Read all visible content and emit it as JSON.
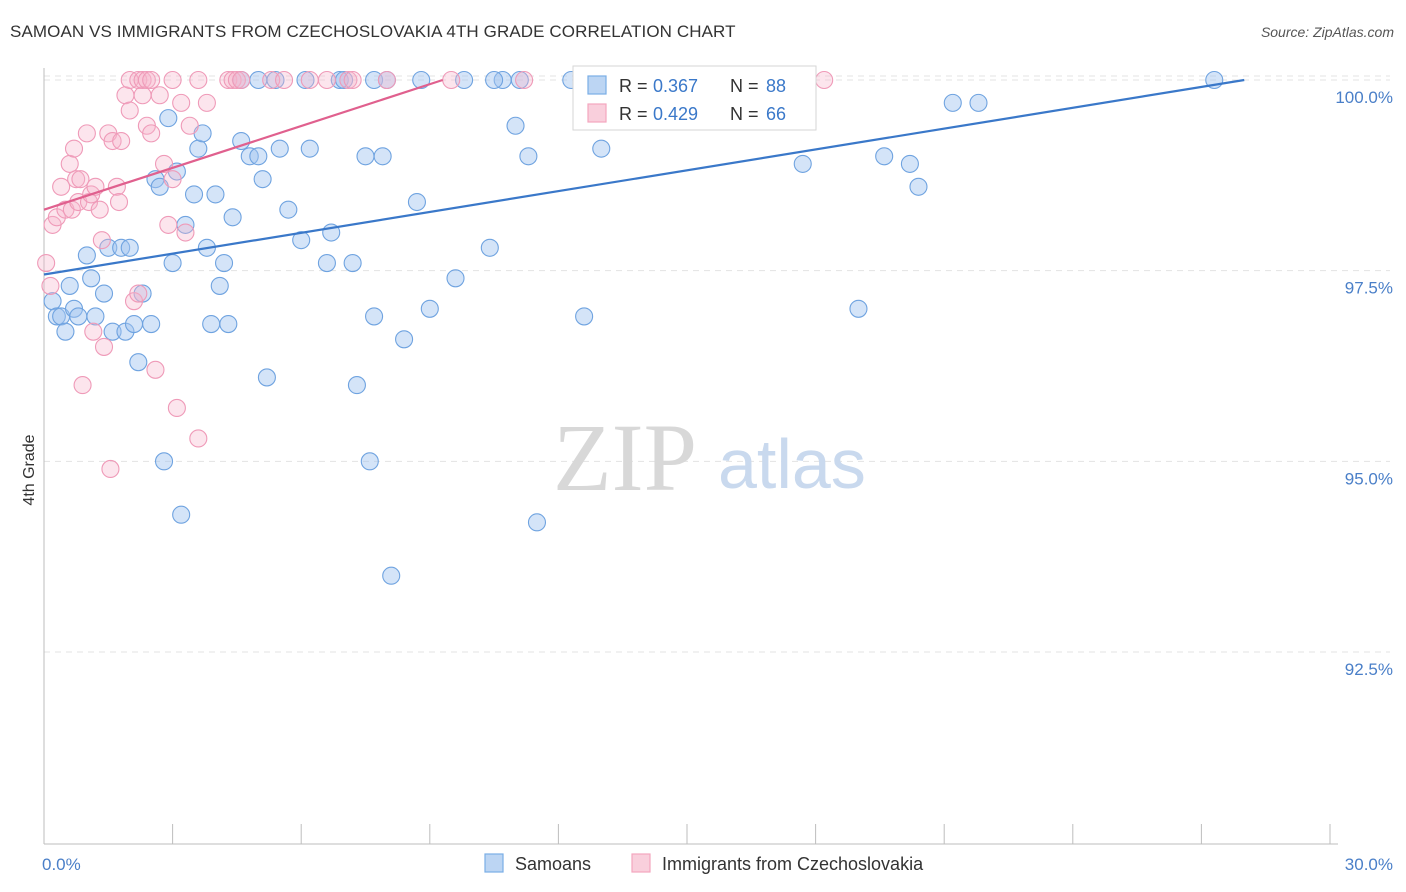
{
  "title": "SAMOAN VS IMMIGRANTS FROM CZECHOSLOVAKIA 4TH GRADE CORRELATION CHART",
  "source": "Source: ZipAtlas.com",
  "watermark": {
    "zip": "ZIP",
    "atlas": "atlas"
  },
  "colors": {
    "blue": "#7aaee6",
    "blue_line": "#3a78c9",
    "pink": "#f4a6bf",
    "pink_line": "#e0608e",
    "label": "#4a7fc8",
    "grid": "#e3e3e3"
  },
  "chart_data": {
    "type": "scatter",
    "title": "SAMOAN VS IMMIGRANTS FROM CZECHOSLOVAKIA 4TH GRADE CORRELATION CHART",
    "xlabel": "",
    "ylabel": "4th Grade",
    "xlim": [
      0,
      30
    ],
    "ylim": [
      90.0,
      100.2
    ],
    "x_tick_labels": [
      "0.0%",
      "30.0%"
    ],
    "y_ticks": [
      92.5,
      95.0,
      97.5,
      100.0
    ],
    "y_tick_labels": [
      "92.5%",
      "95.0%",
      "97.5%",
      "100.0%"
    ],
    "legend": [
      {
        "series": "Samoans",
        "R_label": "R =",
        "R": "0.367",
        "N_label": "N =",
        "N": "88"
      },
      {
        "series": "Immigrants from Czechoslovakia",
        "R_label": "R =",
        "R": "0.429",
        "N_label": "N =",
        "N": "66"
      }
    ],
    "series": [
      {
        "name": "Samoans",
        "color": "#7aaee6",
        "trend": {
          "x": [
            0.0,
            28.0
          ],
          "y": [
            97.45,
            100.0
          ]
        },
        "points": [
          [
            0.2,
            97.1
          ],
          [
            0.3,
            96.9
          ],
          [
            0.4,
            96.9
          ],
          [
            0.5,
            96.7
          ],
          [
            0.6,
            97.3
          ],
          [
            0.7,
            97.0
          ],
          [
            0.8,
            96.9
          ],
          [
            1.0,
            97.7
          ],
          [
            1.1,
            97.4
          ],
          [
            1.2,
            96.9
          ],
          [
            1.4,
            97.2
          ],
          [
            1.5,
            97.8
          ],
          [
            1.6,
            96.7
          ],
          [
            1.8,
            97.8
          ],
          [
            1.9,
            96.7
          ],
          [
            2.0,
            97.8
          ],
          [
            2.1,
            96.8
          ],
          [
            2.2,
            96.3
          ],
          [
            2.3,
            97.2
          ],
          [
            2.5,
            96.8
          ],
          [
            2.6,
            98.7
          ],
          [
            2.7,
            98.6
          ],
          [
            2.8,
            95.0
          ],
          [
            2.9,
            99.5
          ],
          [
            3.0,
            97.6
          ],
          [
            3.1,
            98.8
          ],
          [
            3.2,
            94.3
          ],
          [
            3.3,
            98.1
          ],
          [
            3.5,
            98.5
          ],
          [
            3.6,
            99.1
          ],
          [
            3.7,
            99.3
          ],
          [
            3.8,
            97.8
          ],
          [
            3.9,
            96.8
          ],
          [
            4.0,
            98.5
          ],
          [
            4.1,
            97.3
          ],
          [
            4.2,
            97.6
          ],
          [
            4.3,
            96.8
          ],
          [
            4.4,
            98.2
          ],
          [
            4.6,
            99.2
          ],
          [
            4.8,
            99.0
          ],
          [
            5.0,
            99.0
          ],
          [
            5.1,
            98.7
          ],
          [
            5.2,
            96.1
          ],
          [
            5.5,
            99.1
          ],
          [
            5.7,
            98.3
          ],
          [
            6.0,
            97.9
          ],
          [
            6.2,
            99.1
          ],
          [
            6.6,
            97.6
          ],
          [
            6.7,
            98.0
          ],
          [
            7.2,
            97.6
          ],
          [
            7.3,
            96.0
          ],
          [
            7.5,
            99.0
          ],
          [
            7.6,
            95.0
          ],
          [
            7.7,
            96.9
          ],
          [
            7.9,
            99.0
          ],
          [
            8.1,
            93.5
          ],
          [
            8.4,
            96.6
          ],
          [
            8.7,
            98.4
          ],
          [
            9.0,
            97.0
          ],
          [
            9.6,
            97.4
          ],
          [
            10.4,
            97.8
          ],
          [
            11.0,
            99.4
          ],
          [
            11.3,
            99.0
          ],
          [
            11.5,
            94.2
          ],
          [
            12.6,
            96.9
          ],
          [
            13.0,
            99.1
          ],
          [
            17.7,
            98.9
          ],
          [
            19.0,
            97.0
          ],
          [
            19.6,
            99.0
          ],
          [
            20.2,
            98.9
          ],
          [
            20.4,
            98.6
          ],
          [
            21.2,
            99.7
          ],
          [
            21.8,
            99.7
          ],
          [
            27.3,
            100.0
          ],
          [
            12.3,
            100.0
          ],
          [
            11.1,
            100.0
          ],
          [
            10.7,
            100.0
          ],
          [
            9.8,
            100.0
          ],
          [
            8.8,
            100.0
          ],
          [
            7.7,
            100.0
          ],
          [
            6.9,
            100.0
          ],
          [
            6.1,
            100.0
          ],
          [
            5.0,
            100.0
          ],
          [
            4.6,
            100.0
          ],
          [
            10.5,
            100.0
          ],
          [
            8.0,
            100.0
          ],
          [
            5.4,
            100.0
          ],
          [
            7.0,
            100.0
          ]
        ]
      },
      {
        "name": "Immigrants from Czechoslovakia",
        "color": "#f4a6bf",
        "trend": {
          "x": [
            0.0,
            9.3
          ],
          "y": [
            98.3,
            100.0
          ]
        },
        "points": [
          [
            0.05,
            97.6
          ],
          [
            0.15,
            97.3
          ],
          [
            0.2,
            98.1
          ],
          [
            0.3,
            98.2
          ],
          [
            0.4,
            98.6
          ],
          [
            0.5,
            98.3
          ],
          [
            0.6,
            98.9
          ],
          [
            0.65,
            98.3
          ],
          [
            0.7,
            99.1
          ],
          [
            0.75,
            98.7
          ],
          [
            0.8,
            98.4
          ],
          [
            0.85,
            98.7
          ],
          [
            0.9,
            96.0
          ],
          [
            1.0,
            99.3
          ],
          [
            1.05,
            98.4
          ],
          [
            1.1,
            98.5
          ],
          [
            1.15,
            96.7
          ],
          [
            1.2,
            98.6
          ],
          [
            1.3,
            98.3
          ],
          [
            1.35,
            97.9
          ],
          [
            1.4,
            96.5
          ],
          [
            1.5,
            99.3
          ],
          [
            1.55,
            94.9
          ],
          [
            1.6,
            99.2
          ],
          [
            1.7,
            98.6
          ],
          [
            1.75,
            98.4
          ],
          [
            1.8,
            99.2
          ],
          [
            1.9,
            99.8
          ],
          [
            2.0,
            99.6
          ],
          [
            2.1,
            97.1
          ],
          [
            2.2,
            97.2
          ],
          [
            2.3,
            99.8
          ],
          [
            2.4,
            99.4
          ],
          [
            2.5,
            99.3
          ],
          [
            2.6,
            96.2
          ],
          [
            2.7,
            99.8
          ],
          [
            2.8,
            98.9
          ],
          [
            2.9,
            98.1
          ],
          [
            3.0,
            98.7
          ],
          [
            3.1,
            95.7
          ],
          [
            3.2,
            99.7
          ],
          [
            3.3,
            98.0
          ],
          [
            3.4,
            99.4
          ],
          [
            3.6,
            95.3
          ],
          [
            3.8,
            99.7
          ],
          [
            2.0,
            100.0
          ],
          [
            2.2,
            100.0
          ],
          [
            2.3,
            100.0
          ],
          [
            2.4,
            100.0
          ],
          [
            2.5,
            100.0
          ],
          [
            3.0,
            100.0
          ],
          [
            3.6,
            100.0
          ],
          [
            4.3,
            100.0
          ],
          [
            4.4,
            100.0
          ],
          [
            4.5,
            100.0
          ],
          [
            4.6,
            100.0
          ],
          [
            5.3,
            100.0
          ],
          [
            5.6,
            100.0
          ],
          [
            6.2,
            100.0
          ],
          [
            6.6,
            100.0
          ],
          [
            7.1,
            100.0
          ],
          [
            7.2,
            100.0
          ],
          [
            8.0,
            100.0
          ],
          [
            9.5,
            100.0
          ],
          [
            11.2,
            100.0
          ],
          [
            18.2,
            100.0
          ]
        ]
      }
    ]
  }
}
